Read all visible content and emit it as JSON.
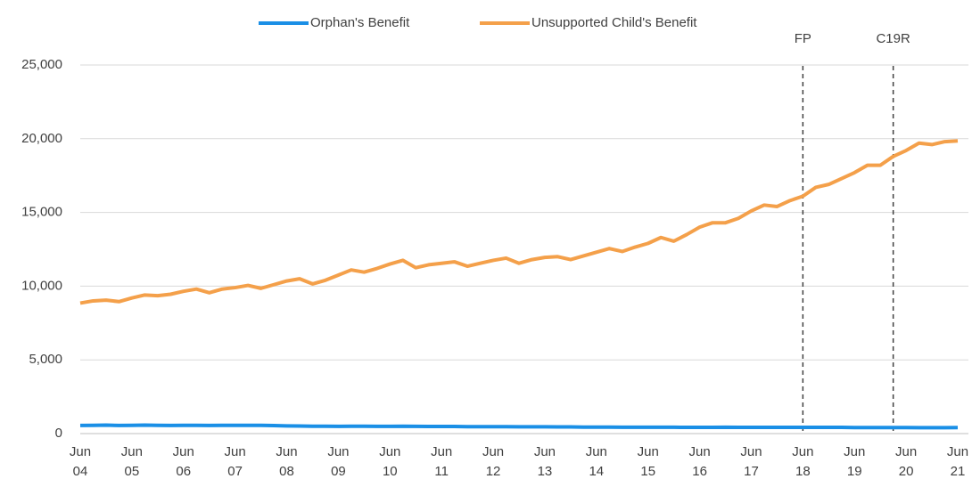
{
  "chart_data": {
    "type": "line",
    "categories": [
      "Jun 04",
      null,
      null,
      null,
      "Jun 05",
      null,
      null,
      null,
      "Jun 06",
      null,
      null,
      null,
      "Jun 07",
      null,
      null,
      null,
      "Jun 08",
      null,
      null,
      null,
      "Jun 09",
      null,
      null,
      null,
      "Jun 10",
      null,
      null,
      null,
      "Jun 11",
      null,
      null,
      null,
      "Jun 12",
      null,
      null,
      null,
      "Jun 13",
      null,
      null,
      null,
      "Jun 14",
      null,
      null,
      null,
      "Jun 15",
      null,
      null,
      null,
      "Jun 16",
      null,
      null,
      null,
      "Jun 17",
      null,
      null,
      null,
      "Jun 18",
      null,
      null,
      null,
      "Jun 19",
      null,
      null,
      null,
      "Jun 20",
      null,
      null,
      null,
      "Jun 21"
    ],
    "series": [
      {
        "name": "Orphan's Benefit",
        "color": "#1a8fe6",
        "values": [
          550,
          560,
          570,
          550,
          560,
          570,
          560,
          550,
          560,
          560,
          550,
          560,
          560,
          560,
          560,
          540,
          520,
          510,
          500,
          500,
          490,
          500,
          500,
          490,
          490,
          500,
          490,
          480,
          480,
          480,
          470,
          470,
          470,
          470,
          460,
          460,
          460,
          450,
          450,
          440,
          440,
          440,
          430,
          430,
          430,
          430,
          430,
          420,
          420,
          420,
          430,
          420,
          420,
          420,
          420,
          420,
          420,
          420,
          420,
          420,
          410,
          410,
          410,
          410,
          410,
          400,
          400,
          400,
          410
        ]
      },
      {
        "name": "Unsupported Child's Benefit",
        "color": "#f4a04a",
        "values": [
          8850,
          9000,
          9050,
          8950,
          9200,
          9400,
          9350,
          9450,
          9650,
          9800,
          9550,
          9800,
          9900,
          10050,
          9850,
          10100,
          10350,
          10500,
          10150,
          10400,
          10750,
          11100,
          10950,
          11200,
          11500,
          11750,
          11250,
          11450,
          11550,
          11650,
          11350,
          11550,
          11750,
          11900,
          11550,
          11800,
          11950,
          12000,
          11800,
          12050,
          12300,
          12550,
          12350,
          12650,
          12900,
          13300,
          13050,
          13500,
          14000,
          14300,
          14300,
          14600,
          15100,
          15500,
          15400,
          15800,
          16100,
          16700,
          16900,
          17300,
          17700,
          18200,
          18200,
          18800,
          19200,
          19700,
          19600,
          19800,
          19850
        ]
      }
    ],
    "ylim": [
      0,
      25000
    ],
    "yticks": [
      0,
      {
        "value": 5000,
        "label": "5,000"
      },
      {
        "value": 10000,
        "label": "10,000"
      },
      {
        "value": 15000,
        "label": "15,000"
      },
      {
        "value": 20000,
        "label": "20,000"
      },
      {
        "value": 25000,
        "label": "25,000"
      }
    ],
    "grid": true,
    "legend": "top",
    "annotations": [
      {
        "label": "FP",
        "x": 56
      },
      {
        "label": "C19R",
        "x": 63
      }
    ]
  }
}
